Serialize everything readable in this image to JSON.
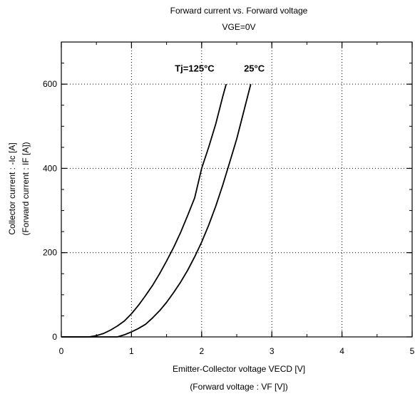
{
  "chart_data": {
    "type": "line",
    "title": "Forward current vs. Forward voltage",
    "subtitle": "VGE=0V",
    "xlabel": "Emitter-Collector voltage VECD [V]",
    "xlabel_sub": "(Forward voltage : VF [V])",
    "ylabel": "Collector current : -Ic [A]",
    "ylabel_sub": "(Forward current : IF [A])",
    "xlim": [
      0,
      5
    ],
    "ylim": [
      0,
      700
    ],
    "xticks": [
      0,
      1,
      2,
      3,
      4,
      5
    ],
    "yticks": [
      0,
      200,
      400,
      600
    ],
    "grid": true,
    "legend": "none",
    "colors": {
      "line": "#000000",
      "grid": "#000000",
      "background": "#ffffff"
    },
    "series": [
      {
        "name": "Tj=125°C",
        "x": [
          0.4,
          0.5,
          0.6,
          0.7,
          0.8,
          0.9,
          1.0,
          1.1,
          1.2,
          1.3,
          1.4,
          1.5,
          1.6,
          1.7,
          1.8,
          1.9,
          2.0,
          2.1,
          2.2,
          2.3,
          2.35
        ],
        "y": [
          0,
          3,
          8,
          16,
          26,
          38,
          55,
          75,
          98,
          122,
          150,
          180,
          212,
          248,
          288,
          330,
          400,
          450,
          505,
          570,
          600
        ]
      },
      {
        "name": "25°C",
        "x": [
          0.8,
          0.9,
          1.0,
          1.1,
          1.2,
          1.3,
          1.4,
          1.5,
          1.6,
          1.7,
          1.8,
          1.9,
          2.0,
          2.1,
          2.2,
          2.3,
          2.4,
          2.5,
          2.6,
          2.7
        ],
        "y": [
          0,
          5,
          12,
          20,
          30,
          45,
          62,
          82,
          105,
          130,
          158,
          190,
          225,
          265,
          310,
          360,
          415,
          470,
          535,
          600
        ]
      }
    ],
    "annotations": [
      {
        "text": "Tj=125°C",
        "x": 1.9,
        "y": 630
      },
      {
        "text": "25°C",
        "x": 2.75,
        "y": 630
      }
    ]
  }
}
